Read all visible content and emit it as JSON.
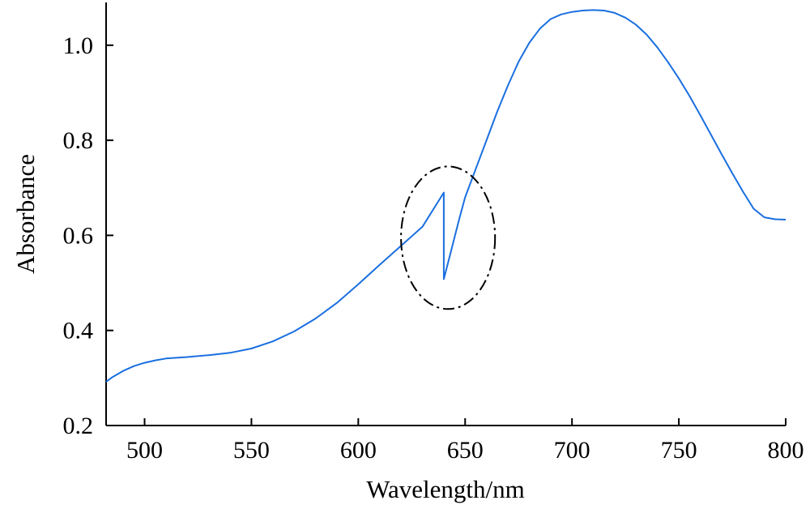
{
  "chart_data": {
    "type": "line",
    "title": "",
    "xlabel": "Wavelength/nm",
    "ylabel": "Absorbance",
    "xlim": [
      482,
      800
    ],
    "ylim": [
      0.2,
      1.09
    ],
    "xticks": [
      500,
      550,
      600,
      650,
      700,
      750,
      800
    ],
    "yticks": [
      0.2,
      0.4,
      0.6,
      0.8,
      1.0
    ],
    "xtick_labels": [
      "500",
      "550",
      "600",
      "650",
      "700",
      "750",
      "800"
    ],
    "ytick_labels": [
      "0.2",
      "0.4",
      "0.6",
      "0.8",
      "1.0"
    ],
    "grid": false,
    "line_color": "#1a6fe0",
    "series": [
      {
        "name": "",
        "x": [
          482,
          485,
          490,
          495,
          500,
          505,
          510,
          520,
          530,
          540,
          550,
          560,
          570,
          580,
          590,
          600,
          610,
          620,
          630,
          640,
          640,
          643,
          647,
          650,
          655,
          660,
          665,
          670,
          675,
          680,
          685,
          690,
          695,
          700,
          705,
          710,
          715,
          720,
          725,
          730,
          735,
          740,
          745,
          750,
          755,
          760,
          765,
          770,
          775,
          780,
          785,
          790,
          795,
          800
        ],
        "y": [
          0.292,
          0.302,
          0.315,
          0.325,
          0.332,
          0.337,
          0.341,
          0.344,
          0.348,
          0.353,
          0.362,
          0.377,
          0.398,
          0.425,
          0.458,
          0.497,
          0.538,
          0.578,
          0.618,
          0.69,
          0.508,
          0.56,
          0.63,
          0.68,
          0.74,
          0.8,
          0.86,
          0.915,
          0.965,
          1.005,
          1.035,
          1.055,
          1.065,
          1.07,
          1.073,
          1.074,
          1.073,
          1.068,
          1.058,
          1.043,
          1.022,
          0.995,
          0.964,
          0.93,
          0.893,
          0.853,
          0.812,
          0.771,
          0.731,
          0.692,
          0.656,
          0.638,
          0.634,
          0.633
        ]
      }
    ],
    "annotations": [
      {
        "type": "dash-dot-ellipse",
        "center": [
          642,
          0.595
        ],
        "radius_x": 22,
        "radius_y": 0.15
      }
    ]
  }
}
